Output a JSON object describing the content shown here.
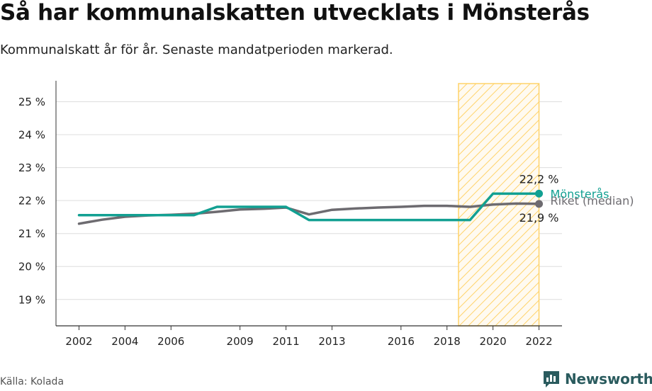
{
  "header": {
    "title": "Så har kommunalskatten utvecklats i Mönsterås",
    "subtitle": "Kommunalskatt år för år. Senaste mandatperioden markerad."
  },
  "footer": {
    "source": "Källa: Kolada",
    "brand": "Newsworthy"
  },
  "colors": {
    "monsteras": "#12a092",
    "riket": "#6d6b70",
    "highlight_stroke": "#ffd36a",
    "grid": "#dddddd",
    "brand": "#2a5b5e"
  },
  "chart_data": {
    "type": "line",
    "ylim": [
      18.2,
      25.55
    ],
    "xlim": [
      2001.0,
      2023.0
    ],
    "y_ticks": [
      19,
      20,
      21,
      22,
      23,
      24,
      25
    ],
    "y_tick_labels": [
      "19 %",
      "20 %",
      "21 %",
      "22 %",
      "23 %",
      "24 %",
      "25 %"
    ],
    "x_ticks": [
      2002,
      2004,
      2006,
      2009,
      2011,
      2013,
      2016,
      2018,
      2020,
      2022
    ],
    "x_tick_labels": [
      "2002",
      "2004",
      "2006",
      "2009",
      "2011",
      "2013",
      "2016",
      "2018",
      "2020",
      "2022"
    ],
    "highlight_period": [
      2018.5,
      2022
    ],
    "series": [
      {
        "name": "Riket (median)",
        "color": "#6d6b70",
        "x": [
          2002,
          2003,
          2004,
          2005,
          2006,
          2007,
          2008,
          2009,
          2010,
          2011,
          2012,
          2013,
          2014,
          2015,
          2016,
          2017,
          2018,
          2019,
          2020,
          2021,
          2022
        ],
        "y": [
          21.3,
          21.42,
          21.51,
          21.55,
          21.57,
          21.6,
          21.66,
          21.73,
          21.75,
          21.79,
          21.58,
          21.72,
          21.76,
          21.79,
          21.81,
          21.84,
          21.84,
          21.81,
          21.88,
          21.91,
          21.9
        ],
        "end_label": "21,9 %"
      },
      {
        "name": "Mönsterås",
        "color": "#12a092",
        "x": [
          2002,
          2003,
          2004,
          2005,
          2006,
          2007,
          2008,
          2009,
          2010,
          2011,
          2012,
          2013,
          2014,
          2015,
          2016,
          2017,
          2018,
          2019,
          2020,
          2021,
          2022
        ],
        "y": [
          21.56,
          21.56,
          21.56,
          21.56,
          21.56,
          21.56,
          21.81,
          21.81,
          21.81,
          21.81,
          21.41,
          21.41,
          21.41,
          21.41,
          21.41,
          21.41,
          21.41,
          21.41,
          22.21,
          22.21,
          22.21
        ],
        "end_label": "22,2 %"
      }
    ]
  }
}
